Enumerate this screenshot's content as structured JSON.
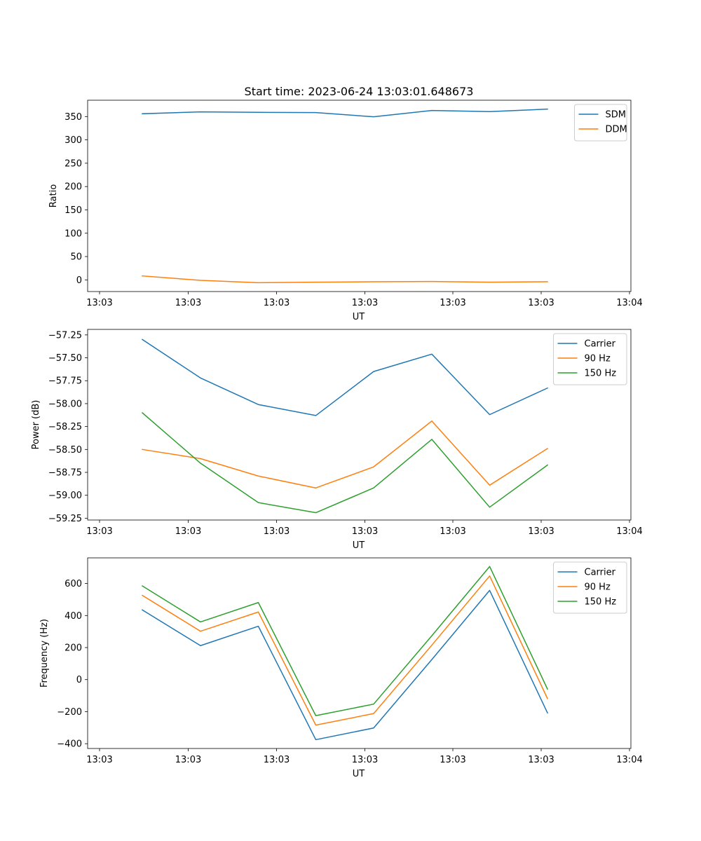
{
  "figure_title": "Start time: 2023-06-24 13:03:01.648673",
  "colors": {
    "blue": "#1f77b4",
    "orange": "#ff7f0e",
    "green": "#2ca02c"
  },
  "chart_data": [
    {
      "type": "line",
      "title": "Start time: 2023-06-24 13:03:01.648673",
      "xlabel": "UT",
      "ylabel": "Ratio",
      "x_tick_labels": [
        "13:03",
        "13:03",
        "13:03",
        "13:03",
        "13:03",
        "13:03",
        "13:04"
      ],
      "y_ticks": [
        0,
        50,
        100,
        150,
        200,
        250,
        300,
        350
      ],
      "ylim": [
        -25,
        385
      ],
      "grid": false,
      "legend_position": "upper right",
      "series": [
        {
          "name": "SDM",
          "color": "#1f77b4",
          "values": [
            356,
            360,
            359,
            358.5,
            349.5,
            363,
            360.5,
            366
          ]
        },
        {
          "name": "DDM",
          "color": "#ff7f0e",
          "values": [
            8.5,
            -1,
            -6,
            -5,
            -4,
            -3.5,
            -5,
            -4
          ]
        }
      ]
    },
    {
      "type": "line",
      "title": "",
      "xlabel": "UT",
      "ylabel": "Power (dB)",
      "x_tick_labels": [
        "13:03",
        "13:03",
        "13:03",
        "13:03",
        "13:03",
        "13:03",
        "13:04"
      ],
      "y_ticks": [
        -57.25,
        -57.5,
        -57.75,
        -58.0,
        -58.25,
        -58.5,
        -58.75,
        -59.0,
        -59.25
      ],
      "y_tick_labels": [
        "−57.25",
        "−57.50",
        "−57.75",
        "−58.00",
        "−58.25",
        "−58.50",
        "−58.75",
        "−59.00",
        "−59.25"
      ],
      "ylim": [
        -59.27,
        -57.19
      ],
      "grid": false,
      "legend_position": "upper right",
      "series": [
        {
          "name": "Carrier",
          "color": "#1f77b4",
          "values": [
            -57.3,
            -57.72,
            -58.01,
            -58.13,
            -57.65,
            -57.46,
            -58.12,
            -57.83
          ]
        },
        {
          "name": "90 Hz",
          "color": "#ff7f0e",
          "values": [
            -58.5,
            -58.6,
            -58.79,
            -58.92,
            -58.69,
            -58.19,
            -58.89,
            -58.49
          ]
        },
        {
          "name": "150 Hz",
          "color": "#2ca02c",
          "values": [
            -58.1,
            -58.65,
            -59.08,
            -59.19,
            -58.92,
            -58.39,
            -59.13,
            -58.67
          ]
        }
      ]
    },
    {
      "type": "line",
      "title": "",
      "xlabel": "UT",
      "ylabel": "Frequency (Hz)",
      "x_tick_labels": [
        "13:03",
        "13:03",
        "13:03",
        "13:03",
        "13:03",
        "13:03",
        "13:04"
      ],
      "y_ticks": [
        -400,
        -200,
        0,
        200,
        400,
        600
      ],
      "y_tick_labels": [
        "−400",
        "−200",
        "0",
        "200",
        "400",
        "600"
      ],
      "ylim": [
        -430,
        760
      ],
      "grid": false,
      "legend_position": "upper right",
      "series": [
        {
          "name": "Carrier",
          "color": "#1f77b4",
          "values": [
            435,
            212,
            333,
            -375,
            -302,
            125,
            557,
            -208
          ]
        },
        {
          "name": "90 Hz",
          "color": "#ff7f0e",
          "values": [
            526,
            302,
            422,
            -284,
            -212,
            215,
            647,
            -118
          ]
        },
        {
          "name": "150 Hz",
          "color": "#2ca02c",
          "values": [
            585,
            360,
            481,
            -225,
            -153,
            274,
            706,
            -59
          ]
        }
      ]
    }
  ]
}
